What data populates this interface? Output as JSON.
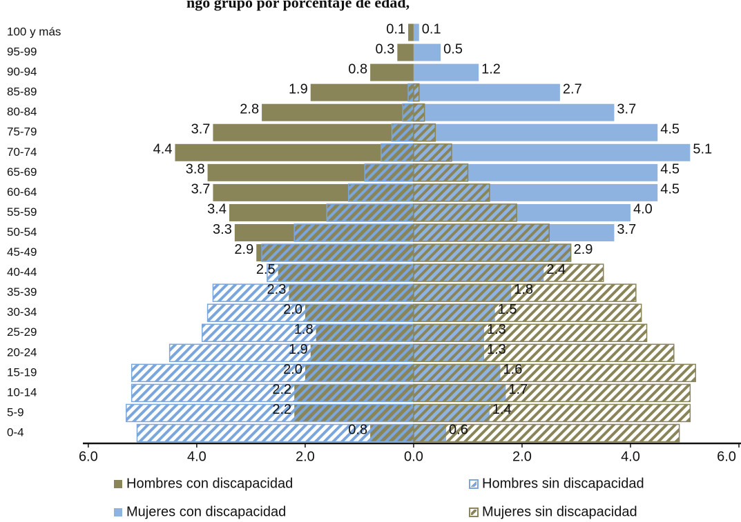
{
  "chart_data": {
    "type": "pyramid",
    "title": "ngo grupo por porcentaje de edad,",
    "categories": [
      "0-4",
      "5-9",
      "10-14",
      "15-19",
      "20-24",
      "25-29",
      "30-34",
      "35-39",
      "40-44",
      "45-49",
      "50-54",
      "55-59",
      "60-64",
      "65-69",
      "70-74",
      "75-79",
      "80-84",
      "85-89",
      "90-94",
      "95-99",
      "100 y más"
    ],
    "series": [
      {
        "name": "Hombres con discapacidad",
        "color": "#8a8459",
        "side": "left",
        "style": "solid",
        "values": [
          0.8,
          2.2,
          2.2,
          2.0,
          1.9,
          1.8,
          2.0,
          2.3,
          2.5,
          2.9,
          3.3,
          3.4,
          3.7,
          3.8,
          4.4,
          3.7,
          2.8,
          1.9,
          0.8,
          0.3,
          0.1
        ]
      },
      {
        "name": "Hombres sin discapacidad",
        "color": "#7aa6dc",
        "side": "left",
        "style": "hatch",
        "values": [
          5.1,
          5.3,
          5.2,
          5.2,
          4.5,
          3.9,
          3.8,
          3.7,
          2.7,
          2.8,
          2.2,
          1.6,
          1.2,
          0.9,
          0.6,
          0.4,
          0.2,
          0.1,
          0,
          0,
          0
        ]
      },
      {
        "name": "Mujeres con discapacidad",
        "color": "#8fb3e0",
        "side": "right",
        "style": "solid",
        "values": [
          0.6,
          1.4,
          1.7,
          1.6,
          1.3,
          1.3,
          1.5,
          1.8,
          2.4,
          2.9,
          3.7,
          4.0,
          4.5,
          4.5,
          5.1,
          4.5,
          3.7,
          2.7,
          1.2,
          0.5,
          0.1
        ]
      },
      {
        "name": "Mujeres sin discapacidad",
        "color": "#8a8459",
        "side": "right",
        "style": "hatch",
        "values": [
          4.9,
          5.1,
          5.1,
          5.2,
          4.8,
          4.3,
          4.2,
          4.1,
          3.5,
          2.9,
          2.5,
          1.9,
          1.4,
          1.0,
          0.7,
          0.4,
          0.2,
          0.1,
          0,
          0,
          0
        ]
      }
    ],
    "xlim": [
      -6.1,
      6.0
    ],
    "xticks": [
      {
        "value": -6,
        "label": "6.0"
      },
      {
        "value": -4,
        "label": "4.0"
      },
      {
        "value": -2,
        "label": "2.0"
      },
      {
        "value": 0,
        "label": "0.0"
      },
      {
        "value": 2,
        "label": "2.0"
      },
      {
        "value": 4,
        "label": "4.0"
      },
      {
        "value": 6,
        "label": "6.0"
      }
    ]
  }
}
